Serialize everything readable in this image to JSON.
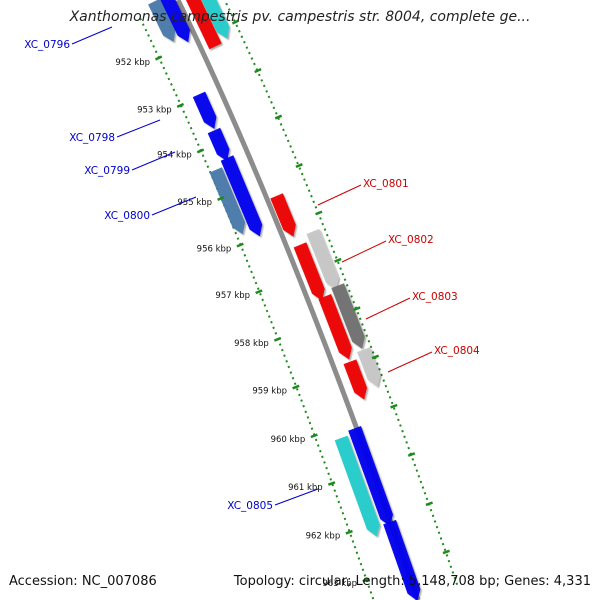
{
  "header": {
    "title": "Xanthomonas campestris pv. campestris str. 8004, complete ge..."
  },
  "footer": {
    "accession": "Accession: NC_007086",
    "summary": "Topology: circular; Length: 5,148,708 bp; Genes: 4,331"
  },
  "ticks": [
    {
      "label": "952 kbp"
    },
    {
      "label": "953 kbp"
    },
    {
      "label": "954 kbp"
    },
    {
      "label": "955 kbp"
    },
    {
      "label": "956 kbp"
    },
    {
      "label": "957 kbp"
    },
    {
      "label": "958 kbp"
    },
    {
      "label": "959 kbp"
    },
    {
      "label": "960 kbp"
    },
    {
      "label": "961 kbp"
    },
    {
      "label": "962 kbp"
    },
    {
      "label": "963 kbp"
    }
  ],
  "gene_labels": [
    {
      "label": "XC_0796",
      "color": "#0000cc"
    },
    {
      "label": "XC_0798",
      "color": "#0000cc"
    },
    {
      "label": "XC_0799",
      "color": "#0000cc"
    },
    {
      "label": "XC_0800",
      "color": "#0000cc"
    },
    {
      "label": "XC_0801",
      "color": "#cc0000"
    },
    {
      "label": "XC_0802",
      "color": "#cc0000"
    },
    {
      "label": "XC_0803",
      "color": "#cc0000"
    },
    {
      "label": "XC_0804",
      "color": "#cc0000"
    },
    {
      "label": "XC_0805",
      "color": "#0000cc"
    }
  ],
  "colors": {
    "backbone": "#8c8c8c",
    "tick_dots": "#1f8a1f",
    "forward_cds": "#0000ee",
    "reverse_cds": "#ee0000",
    "steelblue_cds": "#4a7aaa",
    "cyan_cds": "#22cccc",
    "lightgray_cds": "#c8c8c8",
    "darkgray_cds": "#707070"
  }
}
